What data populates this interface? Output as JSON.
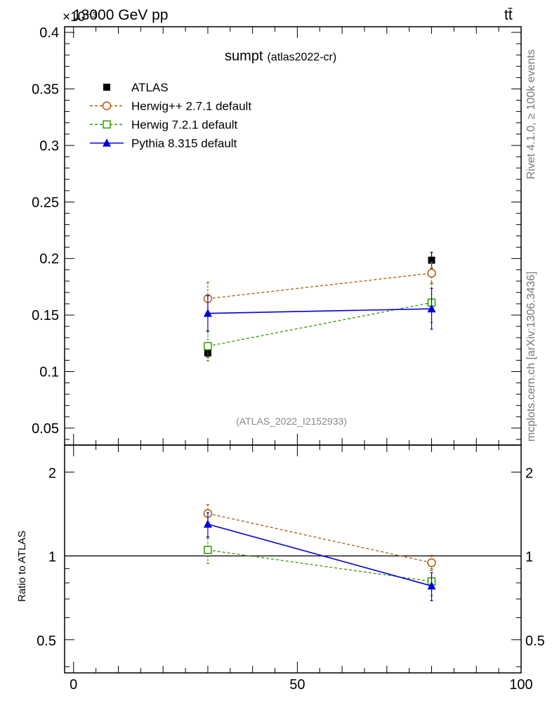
{
  "header": {
    "exponent_label": "×10⁻³",
    "energy_label": "13000 GeV pp",
    "process_label": "tt̄"
  },
  "side_labels": {
    "rivet": "Rivet 4.1.0, ≥ 100k events",
    "mcplots": "mcplots.cern.ch [arXiv:1306.3436]"
  },
  "chart_data": {
    "type": "line",
    "title": "sumpt",
    "subtitle": "(atlas2022-cr)",
    "analysis_label": "(ATLAS_2022_I2152933)",
    "xlabel": "",
    "ylabel": "",
    "ratio_ylabel": "Ratio to ATLAS",
    "xlim": [
      -2,
      100
    ],
    "ylim": [
      0.035,
      0.405
    ],
    "ratio_ylim": [
      0.38,
      2.5
    ],
    "x_ticks": [
      0,
      50,
      100
    ],
    "y_ticks": [
      0.05,
      0.1,
      0.15,
      0.2,
      0.25,
      0.3,
      0.35,
      0.4
    ],
    "y_tick_labels": [
      "0.05",
      "0.1",
      "0.15",
      "0.2",
      "0.25",
      "0.3",
      "0.35",
      "0.4"
    ],
    "ratio_ticks": [
      0.5,
      1,
      2
    ],
    "ratio_tick_labels": [
      "0.5",
      "1",
      "2"
    ],
    "x": [
      30,
      80
    ],
    "series": [
      {
        "name": "ATLAS",
        "color": "#000000",
        "marker": "filled-square",
        "line": "none",
        "values": [
          0.1165,
          0.1985
        ],
        "errors": [
          0.004,
          0.007
        ],
        "ratio": [
          1.0,
          1.0
        ],
        "ratio_errors": [
          0.04,
          0.04
        ]
      },
      {
        "name": "Herwig++ 2.7.1 default",
        "color": "#b35a00",
        "marker": "open-circle",
        "line": "dashed",
        "values": [
          0.1645,
          0.187
        ],
        "errors": [
          0.0145,
          0.0095
        ],
        "ratio": [
          1.42,
          0.945
        ],
        "ratio_errors": [
          0.11,
          0.06
        ]
      },
      {
        "name": "Herwig 7.2.1 default",
        "color": "#339900",
        "marker": "open-square",
        "line": "dashed",
        "values": [
          0.1225,
          0.161
        ],
        "errors": [
          0.013,
          0.0175
        ],
        "ratio": [
          1.05,
          0.81
        ],
        "ratio_errors": [
          0.11,
          0.09
        ]
      },
      {
        "name": "Pythia 8.315 default",
        "color": "#0000dd",
        "marker": "filled-triangle",
        "line": "solid",
        "values": [
          0.1515,
          0.1555
        ],
        "errors": [
          0.0155,
          0.018
        ],
        "ratio": [
          1.3,
          0.78
        ],
        "ratio_errors": [
          0.13,
          0.09
        ]
      }
    ]
  }
}
